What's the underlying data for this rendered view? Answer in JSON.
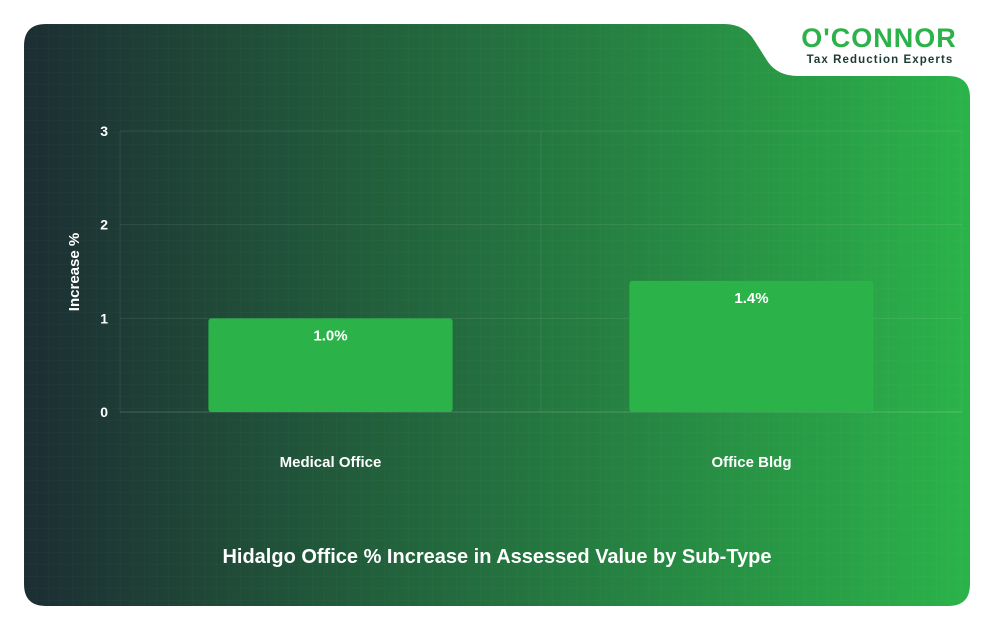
{
  "brand": {
    "logo_text": "O'CONNOR",
    "tagline": "Tax Reduction Experts",
    "color_green": "#2bb34a",
    "color_dark": "#1e3a34"
  },
  "colors": {
    "bar": "#2bb34a",
    "panel_gradient_start": "#1c2e33",
    "panel_gradient_end": "#2bb34a",
    "text": "#ffffff"
  },
  "chart_data": {
    "type": "bar",
    "title": "Hidalgo Office % Increase in Assessed Value by Sub-Type",
    "xlabel": "",
    "ylabel": "Increase %",
    "categories": [
      "Medical Office",
      "Office Bldg"
    ],
    "values": [
      1.0,
      1.4
    ],
    "data_labels": [
      "1.0%",
      "1.4%"
    ],
    "ylim": [
      0,
      3
    ],
    "yticks": [
      "0",
      "1",
      "2",
      "3"
    ],
    "grid": true,
    "legend": "none"
  }
}
